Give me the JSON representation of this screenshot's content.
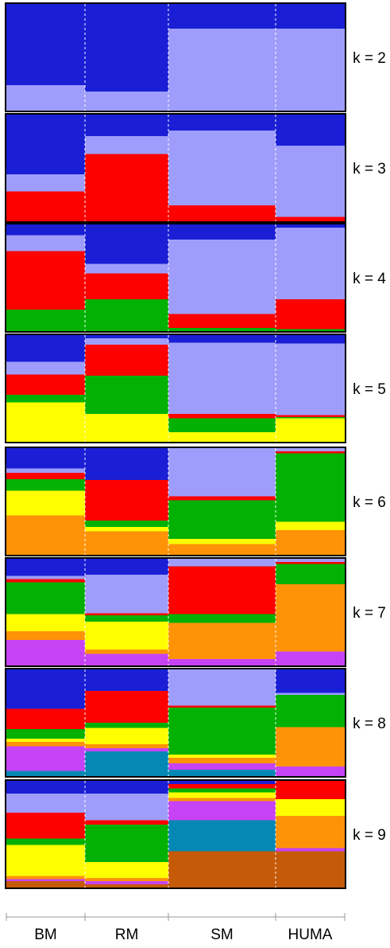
{
  "chart_data": {
    "type": "stacked-bar",
    "categories": [
      "BM",
      "RM",
      "SM",
      "HUMA"
    ],
    "colors": {
      "dark_blue": "#1a1fd6",
      "light_purple": "#9f9dfb",
      "red": "#fd0000",
      "green": "#02b103",
      "yellow": "#fefe00",
      "orange": "#fe9307",
      "violet": "#c643f5",
      "teal": "#0688b5",
      "brown": "#c55a08"
    },
    "panels": [
      {
        "label": "k = 2",
        "bars": [
          [
            [
              "dark_blue",
              0.76
            ],
            [
              "light_purple",
              0.24
            ]
          ],
          [
            [
              "dark_blue",
              0.82
            ],
            [
              "light_purple",
              0.18
            ]
          ],
          [
            [
              "dark_blue",
              0.23
            ],
            [
              "light_purple",
              0.77
            ]
          ],
          [
            [
              "dark_blue",
              0.23
            ],
            [
              "light_purple",
              0.77
            ]
          ]
        ]
      },
      {
        "label": "k = 3",
        "bars": [
          [
            [
              "dark_blue",
              0.56
            ],
            [
              "light_purple",
              0.16
            ],
            [
              "red",
              0.28
            ]
          ],
          [
            [
              "dark_blue",
              0.2
            ],
            [
              "light_purple",
              0.17
            ],
            [
              "red",
              0.63
            ]
          ],
          [
            [
              "dark_blue",
              0.15
            ],
            [
              "light_purple",
              0.7
            ],
            [
              "red",
              0.15
            ]
          ],
          [
            [
              "dark_blue",
              0.29
            ],
            [
              "light_purple",
              0.67
            ],
            [
              "red",
              0.04
            ]
          ]
        ]
      },
      {
        "label": "k = 4",
        "bars": [
          [
            [
              "dark_blue",
              0.1
            ],
            [
              "light_purple",
              0.15
            ],
            [
              "red",
              0.55
            ],
            [
              "green",
              0.2
            ]
          ],
          [
            [
              "dark_blue",
              0.37
            ],
            [
              "light_purple",
              0.09
            ],
            [
              "red",
              0.24
            ],
            [
              "green",
              0.3
            ]
          ],
          [
            [
              "dark_blue",
              0.14
            ],
            [
              "light_purple",
              0.7
            ],
            [
              "red",
              0.13
            ],
            [
              "green",
              0.03
            ]
          ],
          [
            [
              "dark_blue",
              0.03
            ],
            [
              "light_purple",
              0.67
            ],
            [
              "red",
              0.28
            ],
            [
              "green",
              0.02
            ]
          ]
        ]
      },
      {
        "label": "k = 5",
        "bars": [
          [
            [
              "dark_blue",
              0.25
            ],
            [
              "light_purple",
              0.12
            ],
            [
              "red",
              0.19
            ],
            [
              "green",
              0.07
            ],
            [
              "yellow",
              0.37
            ]
          ],
          [
            [
              "dark_blue",
              0.03
            ],
            [
              "light_purple",
              0.06
            ],
            [
              "red",
              0.29
            ],
            [
              "green",
              0.36
            ],
            [
              "yellow",
              0.26
            ]
          ],
          [
            [
              "dark_blue",
              0.07
            ],
            [
              "light_purple",
              0.67
            ],
            [
              "red",
              0.04
            ],
            [
              "green",
              0.13
            ],
            [
              "yellow",
              0.09
            ]
          ],
          [
            [
              "dark_blue",
              0.08
            ],
            [
              "light_purple",
              0.67
            ],
            [
              "red",
              0.02
            ],
            [
              "green",
              0.01
            ],
            [
              "yellow",
              0.22
            ]
          ]
        ]
      },
      {
        "label": "k = 6",
        "bars": [
          [
            [
              "dark_blue",
              0.19
            ],
            [
              "light_purple",
              0.04
            ],
            [
              "red",
              0.06
            ],
            [
              "green",
              0.11
            ],
            [
              "yellow",
              0.23
            ],
            [
              "orange",
              0.37
            ]
          ],
          [
            [
              "dark_blue",
              0.3
            ],
            [
              "red",
              0.38
            ],
            [
              "green",
              0.06
            ],
            [
              "yellow",
              0.04
            ],
            [
              "orange",
              0.22
            ]
          ],
          [
            [
              "light_purple",
              0.45
            ],
            [
              "red",
              0.04
            ],
            [
              "green",
              0.36
            ],
            [
              "yellow",
              0.05
            ],
            [
              "orange",
              0.1
            ]
          ],
          [
            [
              "light_purple",
              0.03
            ],
            [
              "red",
              0.02
            ],
            [
              "green",
              0.64
            ],
            [
              "yellow",
              0.08
            ],
            [
              "orange",
              0.23
            ]
          ]
        ]
      },
      {
        "label": "k = 7",
        "bars": [
          [
            [
              "dark_blue",
              0.16
            ],
            [
              "light_purple",
              0.03
            ],
            [
              "red",
              0.03
            ],
            [
              "green",
              0.3
            ],
            [
              "yellow",
              0.16
            ],
            [
              "orange",
              0.08
            ],
            [
              "violet",
              0.24
            ]
          ],
          [
            [
              "dark_blue",
              0.15
            ],
            [
              "light_purple",
              0.36
            ],
            [
              "red",
              0.02
            ],
            [
              "green",
              0.06
            ],
            [
              "yellow",
              0.26
            ],
            [
              "orange",
              0.04
            ],
            [
              "violet",
              0.11
            ]
          ],
          [
            [
              "light_purple",
              0.07
            ],
            [
              "red",
              0.45
            ],
            [
              "green",
              0.08
            ],
            [
              "orange",
              0.34
            ],
            [
              "violet",
              0.06
            ]
          ],
          [
            [
              "light_purple",
              0.03
            ],
            [
              "red",
              0.02
            ],
            [
              "green",
              0.19
            ],
            [
              "orange",
              0.63
            ],
            [
              "violet",
              0.13
            ]
          ]
        ]
      },
      {
        "label": "k = 8",
        "bars": [
          [
            [
              "dark_blue",
              0.37
            ],
            [
              "red",
              0.19
            ],
            [
              "green",
              0.09
            ],
            [
              "yellow",
              0.03
            ],
            [
              "orange",
              0.04
            ],
            [
              "violet",
              0.23
            ],
            [
              "teal",
              0.05
            ]
          ],
          [
            [
              "dark_blue",
              0.2
            ],
            [
              "red",
              0.3
            ],
            [
              "green",
              0.05
            ],
            [
              "yellow",
              0.15
            ],
            [
              "orange",
              0.04
            ],
            [
              "violet",
              0.03
            ],
            [
              "teal",
              0.23
            ]
          ],
          [
            [
              "light_purple",
              0.34
            ],
            [
              "red",
              0.02
            ],
            [
              "green",
              0.44
            ],
            [
              "yellow",
              0.03
            ],
            [
              "orange",
              0.05
            ],
            [
              "violet",
              0.06
            ],
            [
              "teal",
              0.06
            ]
          ],
          [
            [
              "dark_blue",
              0.22
            ],
            [
              "light_purple",
              0.02
            ],
            [
              "green",
              0.3
            ],
            [
              "orange",
              0.37
            ],
            [
              "violet",
              0.09
            ]
          ]
        ]
      },
      {
        "label": "k = 9",
        "bars": [
          [
            [
              "dark_blue",
              0.12
            ],
            [
              "light_purple",
              0.18
            ],
            [
              "red",
              0.24
            ],
            [
              "green",
              0.06
            ],
            [
              "yellow",
              0.29
            ],
            [
              "orange",
              0.03
            ],
            [
              "violet",
              0.02
            ],
            [
              "brown",
              0.06
            ]
          ],
          [
            [
              "dark_blue",
              0.12
            ],
            [
              "light_purple",
              0.25
            ],
            [
              "red",
              0.04
            ],
            [
              "green",
              0.35
            ],
            [
              "yellow",
              0.15
            ],
            [
              "orange",
              0.03
            ],
            [
              "violet",
              0.03
            ],
            [
              "brown",
              0.03
            ]
          ],
          [
            [
              "dark_blue",
              0.03
            ],
            [
              "red",
              0.04
            ],
            [
              "green",
              0.04
            ],
            [
              "yellow",
              0.05
            ],
            [
              "orange",
              0.03
            ],
            [
              "violet",
              0.18
            ],
            [
              "teal",
              0.29
            ],
            [
              "brown",
              0.34
            ]
          ],
          [
            [
              "red",
              0.17
            ],
            [
              "yellow",
              0.16
            ],
            [
              "orange",
              0.3
            ],
            [
              "violet",
              0.03
            ],
            [
              "brown",
              0.34
            ]
          ]
        ]
      }
    ]
  }
}
